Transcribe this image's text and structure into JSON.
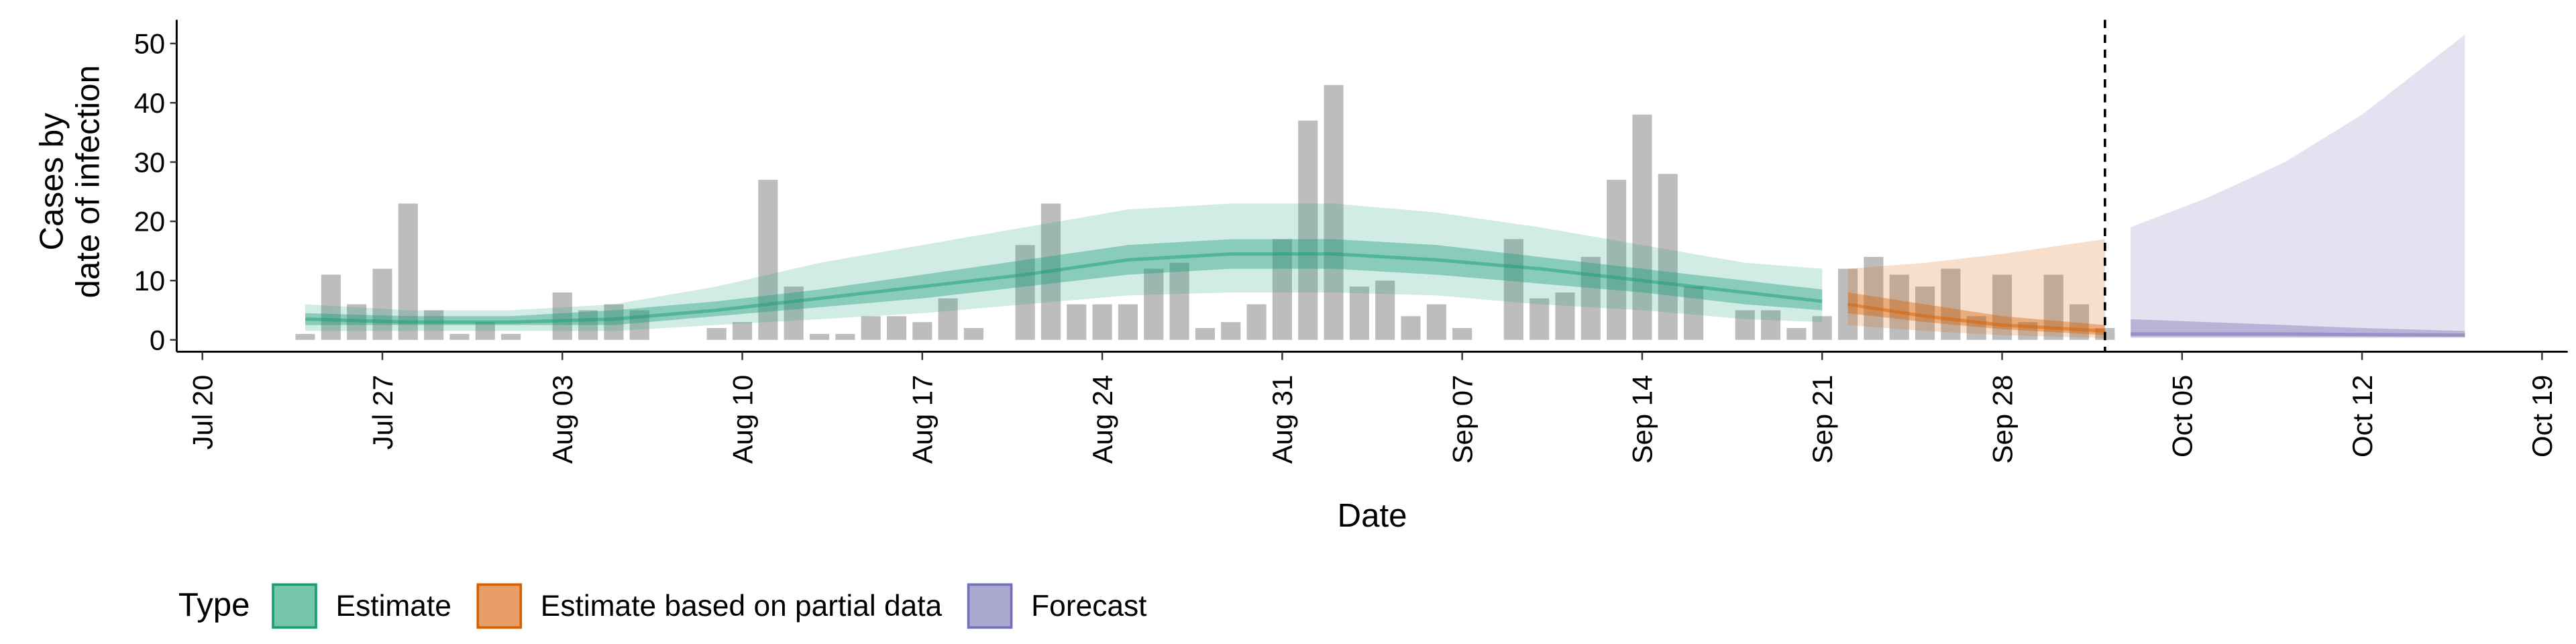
{
  "chart_data": {
    "type": "nowcast",
    "x_label": "Date",
    "y_label": [
      "Cases by",
      "date of infection"
    ],
    "legend_title": "Type",
    "legend_position": "bottom",
    "xlim": [
      "Jul 19",
      "Oct 20"
    ],
    "ylim": [
      -2,
      54
    ],
    "yticks": [
      0,
      10,
      20,
      30,
      40,
      50
    ],
    "xticks": [
      "Jul 20",
      "Jul 27",
      "Aug 03",
      "Aug 10",
      "Aug 17",
      "Aug 24",
      "Aug 31",
      "Sep 07",
      "Sep 14",
      "Sep 21",
      "Sep 28",
      "Oct 05",
      "Oct 12",
      "Oct 19"
    ],
    "vline_x": "Oct 2",
    "bars": {
      "color": "#bdbdbd",
      "x": [
        "Jul 24",
        "Jul 25",
        "Jul 26",
        "Jul 27",
        "Jul 28",
        "Jul 29",
        "Jul 30",
        "Jul 31",
        "Aug 1",
        "Aug 2",
        "Aug 3",
        "Aug 4",
        "Aug 5",
        "Aug 6",
        "Aug 7",
        "Aug 8",
        "Aug 9",
        "Aug 10",
        "Aug 11",
        "Aug 12",
        "Aug 13",
        "Aug 14",
        "Aug 15",
        "Aug 16",
        "Aug 17",
        "Aug 18",
        "Aug 19",
        "Aug 20",
        "Aug 21",
        "Aug 22",
        "Aug 23",
        "Aug 24",
        "Aug 25",
        "Aug 26",
        "Aug 27",
        "Aug 28",
        "Aug 29",
        "Aug 30",
        "Aug 31",
        "Sep 1",
        "Sep 2",
        "Sep 3",
        "Sep 4",
        "Sep 5",
        "Sep 6",
        "Sep 7",
        "Sep 8",
        "Sep 9",
        "Sep 10",
        "Sep 11",
        "Sep 12",
        "Sep 13",
        "Sep 14",
        "Sep 15",
        "Sep 16",
        "Sep 17",
        "Sep 18",
        "Sep 19",
        "Sep 20",
        "Sep 21",
        "Sep 22",
        "Sep 23",
        "Sep 24",
        "Sep 25",
        "Sep 26",
        "Sep 27",
        "Sep 28",
        "Sep 29",
        "Sep 30",
        "Oct 1",
        "Oct 2"
      ],
      "values": [
        1,
        11,
        6,
        12,
        23,
        5,
        1,
        3,
        1,
        0,
        8,
        5,
        6,
        5,
        0,
        0,
        2,
        3,
        27,
        9,
        1,
        1,
        4,
        4,
        3,
        7,
        2,
        0,
        16,
        23,
        6,
        6,
        6,
        12,
        13,
        2,
        3,
        6,
        17,
        37,
        43,
        9,
        10,
        4,
        6,
        2,
        0,
        17,
        7,
        8,
        14,
        27,
        38,
        28,
        9,
        0,
        5,
        5,
        2,
        4,
        12,
        14,
        11,
        9,
        12,
        4,
        11,
        3,
        11,
        6,
        2
      ]
    },
    "series": [
      {
        "name": "Estimate",
        "color": "#1b9e77",
        "x": [
          "Jul 24",
          "Jul 28",
          "Aug 1",
          "Aug 5",
          "Aug 9",
          "Aug 13",
          "Aug 17",
          "Aug 21",
          "Aug 25",
          "Aug 29",
          "Sep 2",
          "Sep 6",
          "Sep 10",
          "Sep 14",
          "Sep 18",
          "Sep 21"
        ],
        "median": [
          3.5,
          3,
          3,
          3.5,
          5,
          7,
          9,
          11,
          13.5,
          14.5,
          14.5,
          13.5,
          12,
          10,
          8,
          6.5
        ],
        "lower_90": [
          1.5,
          1.5,
          1.5,
          1.5,
          2.5,
          3.5,
          4.5,
          6,
          7.5,
          8,
          8,
          7.5,
          6,
          5,
          3.5,
          3
        ],
        "upper_90": [
          6,
          5,
          5,
          6,
          9,
          13,
          16,
          19,
          22,
          23,
          23,
          21.5,
          19,
          16,
          13,
          12
        ],
        "lower_50": [
          2.5,
          2.5,
          2.5,
          2.5,
          4,
          5.5,
          7,
          9,
          11,
          12,
          12,
          11,
          9.5,
          8,
          6,
          5
        ],
        "upper_50": [
          4.5,
          4,
          4,
          5,
          6.5,
          8.5,
          11,
          13.5,
          16,
          17,
          17,
          16,
          14,
          12,
          10,
          8.5
        ]
      },
      {
        "name": "Estimate based on partial data",
        "color": "#d95f02",
        "x": [
          "Sep 22",
          "Sep 25",
          "Sep 28",
          "Oct 2"
        ],
        "median": [
          6,
          4,
          2.5,
          1.5
        ],
        "lower_90": [
          2.5,
          1.5,
          0.8,
          0.3
        ],
        "upper_90": [
          12,
          13,
          14.5,
          17
        ],
        "lower_50": [
          4.5,
          3,
          1.8,
          0.8
        ],
        "upper_50": [
          8,
          6,
          4,
          2.5
        ]
      },
      {
        "name": "Forecast",
        "color": "#7570b3",
        "x": [
          "Oct 3",
          "Oct 6",
          "Oct 9",
          "Oct 12",
          "Oct 16"
        ],
        "median": [
          1,
          1,
          1,
          0.9,
          0.8
        ],
        "lower_90": [
          0.3,
          0.3,
          0.3,
          0.3,
          0.3
        ],
        "upper_90": [
          19,
          24,
          30,
          38,
          51.5
        ],
        "lower_50": [
          0.5,
          0.5,
          0.5,
          0.5,
          0.5
        ],
        "upper_50": [
          3.5,
          3,
          2.5,
          2,
          1.5
        ]
      }
    ]
  }
}
